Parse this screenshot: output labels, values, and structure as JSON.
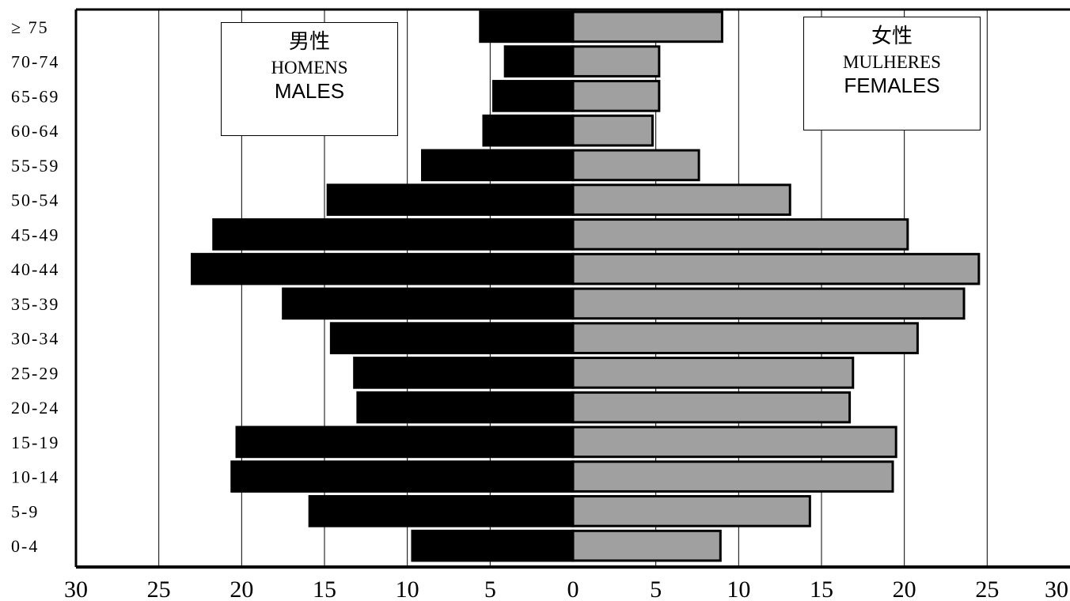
{
  "chart_data": {
    "type": "bar",
    "orientation": "horizontal-population-pyramid",
    "categories": [
      "0-4",
      "5-9",
      "10-14",
      "15-19",
      "20-24",
      "25-29",
      "30-34",
      "35-39",
      "40-44",
      "45-49",
      "50-54",
      "55-59",
      "60-64",
      "65-69",
      "70-74",
      "≥ 75"
    ],
    "series": [
      {
        "name": "男性 HOMENS MALES",
        "color": "#000000",
        "values": [
          9.7,
          15.9,
          20.6,
          20.3,
          13.0,
          13.2,
          14.6,
          17.5,
          23.0,
          21.7,
          14.8,
          9.1,
          5.4,
          4.8,
          4.1,
          5.6
        ]
      },
      {
        "name": "女性 MULHERES FEMALES",
        "color": "#a0a0a0",
        "values": [
          8.9,
          14.3,
          19.3,
          19.5,
          16.7,
          16.9,
          20.8,
          23.6,
          24.5,
          20.2,
          13.1,
          7.6,
          4.8,
          5.2,
          5.2,
          9.0
        ]
      }
    ],
    "xticks": [
      "30",
      "25",
      "20",
      "15",
      "10",
      "5",
      "0",
      "5",
      "10",
      "15",
      "20",
      "25",
      "30"
    ],
    "xlim": [
      -30,
      30
    ],
    "grid": "vertical gridlines every 5",
    "legend_position": "inside, top-left and top-right"
  },
  "legend": {
    "male": {
      "cjk": "男性",
      "pt": "HOMENS",
      "en": "MALES"
    },
    "female": {
      "cjk": "女性",
      "pt": "MULHERES",
      "en": "FEMALES"
    }
  },
  "colors": {
    "male_bar": "#000000",
    "female_bar": "#a0a0a0",
    "axis": "#000000"
  }
}
